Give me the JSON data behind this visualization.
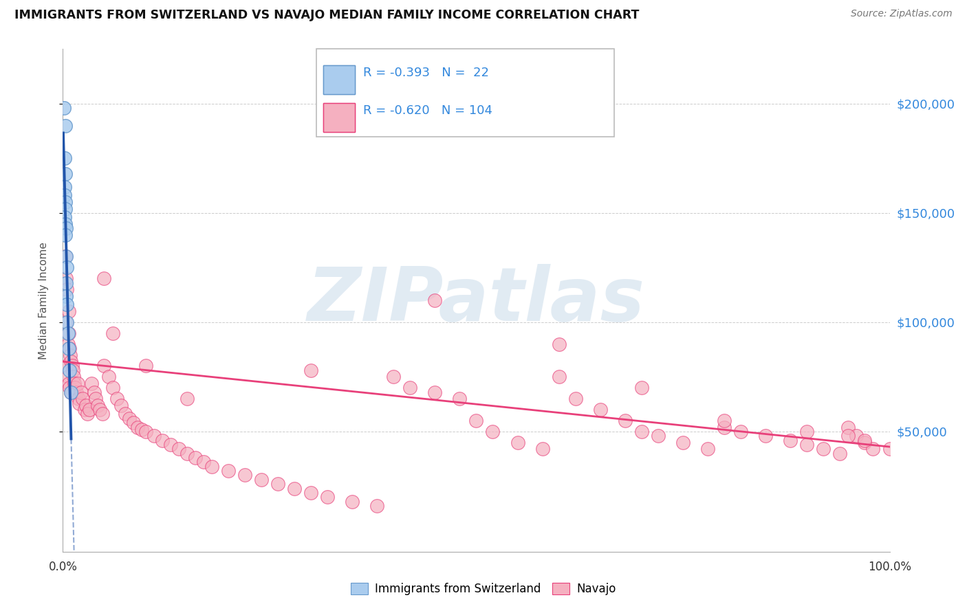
{
  "title": "IMMIGRANTS FROM SWITZERLAND VS NAVAJO MEDIAN FAMILY INCOME CORRELATION CHART",
  "source": "Source: ZipAtlas.com",
  "ylabel": "Median Family Income",
  "y_tick_values": [
    50000,
    100000,
    150000,
    200000
  ],
  "ylim": [
    -5000,
    225000
  ],
  "xlim": [
    0.0,
    1.0
  ],
  "r_swiss": "-0.393",
  "n_swiss": "22",
  "r_navajo": "-0.620",
  "n_navajo": "104",
  "legend_label_swiss": "Immigrants from Switzerland",
  "legend_label_navajo": "Navajo",
  "swiss_line_color": "#2255aa",
  "navajo_line_color": "#e8407a",
  "blue_circle_facecolor": "#aaccee",
  "blue_circle_edgecolor": "#6699cc",
  "pink_circle_facecolor": "#f5b0c0",
  "pink_circle_edgecolor": "#e8407a",
  "title_color": "#111111",
  "source_color": "#777777",
  "right_axis_label_color": "#3388dd",
  "legend_text_color": "#3388dd",
  "watermark_color": "#c5d8e8",
  "watermark_text": "ZIPatlas",
  "background_color": "#ffffff",
  "grid_color": "#cccccc",
  "swiss_x": [
    0.001,
    0.003,
    0.002,
    0.003,
    0.002,
    0.002,
    0.003,
    0.003,
    0.002,
    0.003,
    0.004,
    0.003,
    0.004,
    0.005,
    0.004,
    0.004,
    0.005,
    0.005,
    0.006,
    0.007,
    0.008,
    0.01
  ],
  "swiss_y": [
    198000,
    190000,
    175000,
    168000,
    162000,
    158000,
    155000,
    152000,
    148000,
    145000,
    143000,
    140000,
    130000,
    125000,
    118000,
    112000,
    108000,
    100000,
    95000,
    88000,
    78000,
    68000
  ],
  "navajo_x": [
    0.003,
    0.004,
    0.004,
    0.005,
    0.005,
    0.006,
    0.006,
    0.007,
    0.007,
    0.007,
    0.008,
    0.008,
    0.009,
    0.01,
    0.01,
    0.011,
    0.012,
    0.013,
    0.014,
    0.015,
    0.016,
    0.018,
    0.019,
    0.02,
    0.022,
    0.024,
    0.026,
    0.028,
    0.03,
    0.032,
    0.035,
    0.038,
    0.04,
    0.042,
    0.045,
    0.048,
    0.05,
    0.055,
    0.06,
    0.065,
    0.07,
    0.075,
    0.08,
    0.085,
    0.09,
    0.095,
    0.1,
    0.11,
    0.12,
    0.13,
    0.14,
    0.15,
    0.16,
    0.17,
    0.18,
    0.2,
    0.22,
    0.24,
    0.26,
    0.28,
    0.3,
    0.32,
    0.35,
    0.38,
    0.4,
    0.42,
    0.45,
    0.48,
    0.5,
    0.52,
    0.55,
    0.58,
    0.6,
    0.62,
    0.65,
    0.68,
    0.7,
    0.72,
    0.75,
    0.78,
    0.8,
    0.82,
    0.85,
    0.88,
    0.9,
    0.92,
    0.94,
    0.95,
    0.96,
    0.97,
    0.98,
    0.05,
    0.06,
    0.1,
    0.15,
    0.3,
    0.45,
    0.6,
    0.7,
    0.8,
    0.9,
    0.95,
    0.97,
    1.0
  ],
  "navajo_y": [
    130000,
    120000,
    100000,
    115000,
    80000,
    90000,
    75000,
    105000,
    95000,
    72000,
    88000,
    70000,
    85000,
    82000,
    68000,
    80000,
    78000,
    75000,
    72000,
    70000,
    68000,
    72000,
    65000,
    63000,
    68000,
    65000,
    60000,
    62000,
    58000,
    60000,
    72000,
    68000,
    65000,
    62000,
    60000,
    58000,
    80000,
    75000,
    70000,
    65000,
    62000,
    58000,
    56000,
    54000,
    52000,
    51000,
    50000,
    48000,
    46000,
    44000,
    42000,
    40000,
    38000,
    36000,
    34000,
    32000,
    30000,
    28000,
    26000,
    24000,
    22000,
    20000,
    18000,
    16000,
    75000,
    70000,
    68000,
    65000,
    55000,
    50000,
    45000,
    42000,
    75000,
    65000,
    60000,
    55000,
    50000,
    48000,
    45000,
    42000,
    52000,
    50000,
    48000,
    46000,
    44000,
    42000,
    40000,
    52000,
    48000,
    45000,
    42000,
    120000,
    95000,
    80000,
    65000,
    78000,
    110000,
    90000,
    70000,
    55000,
    50000,
    48000,
    46000,
    42000
  ]
}
